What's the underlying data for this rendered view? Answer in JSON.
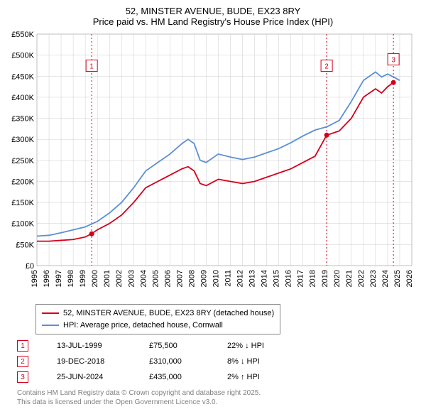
{
  "title_line1": "52, MINSTER AVENUE, BUDE, EX23 8RY",
  "title_line2": "Price paid vs. HM Land Registry's House Price Index (HPI)",
  "chart": {
    "type": "line",
    "background_color": "#ffffff",
    "plot_bg": "#ffffff",
    "grid_color": "#cccccc",
    "axis_color": "#000000",
    "x": {
      "min": 1995,
      "max": 2026,
      "ticks": [
        1995,
        1996,
        1997,
        1998,
        1999,
        2000,
        2001,
        2002,
        2003,
        2004,
        2005,
        2006,
        2007,
        2008,
        2009,
        2010,
        2011,
        2012,
        2013,
        2014,
        2015,
        2016,
        2017,
        2018,
        2019,
        2020,
        2021,
        2022,
        2023,
        2024,
        2025,
        2026
      ]
    },
    "y": {
      "min": 0,
      "max": 550000,
      "tick_step": 50000,
      "tick_labels": [
        "£0",
        "£50K",
        "£100K",
        "£150K",
        "£200K",
        "£250K",
        "£300K",
        "£350K",
        "£400K",
        "£450K",
        "£500K",
        "£550K"
      ]
    },
    "series": [
      {
        "name": "52, MINSTER AVENUE, BUDE, EX23 8RY (detached house)",
        "color": "#d4001a",
        "width": 1.8,
        "data": [
          [
            1995,
            58000
          ],
          [
            1996,
            58000
          ],
          [
            1997,
            60000
          ],
          [
            1998,
            62000
          ],
          [
            1999,
            68000
          ],
          [
            1999.5,
            75500
          ],
          [
            2000,
            85000
          ],
          [
            2001,
            100000
          ],
          [
            2002,
            120000
          ],
          [
            2003,
            150000
          ],
          [
            2004,
            185000
          ],
          [
            2005,
            200000
          ],
          [
            2006,
            215000
          ],
          [
            2007,
            230000
          ],
          [
            2007.5,
            235000
          ],
          [
            2008,
            225000
          ],
          [
            2008.5,
            195000
          ],
          [
            2009,
            190000
          ],
          [
            2010,
            205000
          ],
          [
            2011,
            200000
          ],
          [
            2012,
            195000
          ],
          [
            2013,
            200000
          ],
          [
            2014,
            210000
          ],
          [
            2015,
            220000
          ],
          [
            2016,
            230000
          ],
          [
            2017,
            245000
          ],
          [
            2018,
            260000
          ],
          [
            2018.96,
            310000
          ],
          [
            2019,
            310000
          ],
          [
            2020,
            320000
          ],
          [
            2021,
            350000
          ],
          [
            2022,
            400000
          ],
          [
            2023,
            420000
          ],
          [
            2023.5,
            410000
          ],
          [
            2024,
            425000
          ],
          [
            2024.48,
            435000
          ]
        ]
      },
      {
        "name": "HPI: Average price, detached house, Cornwall",
        "color": "#5b8fd6",
        "width": 1.8,
        "data": [
          [
            1995,
            70000
          ],
          [
            1996,
            72000
          ],
          [
            1997,
            78000
          ],
          [
            1998,
            85000
          ],
          [
            1999,
            92000
          ],
          [
            2000,
            105000
          ],
          [
            2001,
            125000
          ],
          [
            2002,
            150000
          ],
          [
            2003,
            185000
          ],
          [
            2004,
            225000
          ],
          [
            2005,
            245000
          ],
          [
            2006,
            265000
          ],
          [
            2007,
            290000
          ],
          [
            2007.5,
            300000
          ],
          [
            2008,
            290000
          ],
          [
            2008.5,
            250000
          ],
          [
            2009,
            245000
          ],
          [
            2010,
            265000
          ],
          [
            2011,
            258000
          ],
          [
            2012,
            252000
          ],
          [
            2013,
            258000
          ],
          [
            2014,
            268000
          ],
          [
            2015,
            278000
          ],
          [
            2016,
            292000
          ],
          [
            2017,
            308000
          ],
          [
            2018,
            322000
          ],
          [
            2019,
            330000
          ],
          [
            2020,
            345000
          ],
          [
            2021,
            390000
          ],
          [
            2022,
            440000
          ],
          [
            2023,
            460000
          ],
          [
            2023.5,
            448000
          ],
          [
            2024,
            455000
          ],
          [
            2024.5,
            448000
          ],
          [
            2025,
            440000
          ]
        ]
      }
    ],
    "markers": [
      {
        "n": 1,
        "x": 1999.53,
        "y": 75500,
        "color": "#d4001a",
        "badge_y": 475000
      },
      {
        "n": 2,
        "x": 2018.96,
        "y": 310000,
        "color": "#d4001a",
        "badge_y": 475000
      },
      {
        "n": 3,
        "x": 2024.48,
        "y": 435000,
        "color": "#d4001a",
        "badge_y": 490000
      }
    ]
  },
  "legend": [
    {
      "color": "#d4001a",
      "label": "52, MINSTER AVENUE, BUDE, EX23 8RY (detached house)"
    },
    {
      "color": "#5b8fd6",
      "label": "HPI: Average price, detached house, Cornwall"
    }
  ],
  "sales": [
    {
      "n": "1",
      "color": "#d4001a",
      "date": "13-JUL-1999",
      "price": "£75,500",
      "diff": "22%",
      "arrow": "↓",
      "suffix": "HPI"
    },
    {
      "n": "2",
      "color": "#d4001a",
      "date": "19-DEC-2018",
      "price": "£310,000",
      "diff": "8%",
      "arrow": "↓",
      "suffix": "HPI"
    },
    {
      "n": "3",
      "color": "#d4001a",
      "date": "25-JUN-2024",
      "price": "£435,000",
      "diff": "2%",
      "arrow": "↑",
      "suffix": "HPI"
    }
  ],
  "footer1": "Contains HM Land Registry data © Crown copyright and database right 2025.",
  "footer2": "This data is licensed under the Open Government Licence v3.0."
}
